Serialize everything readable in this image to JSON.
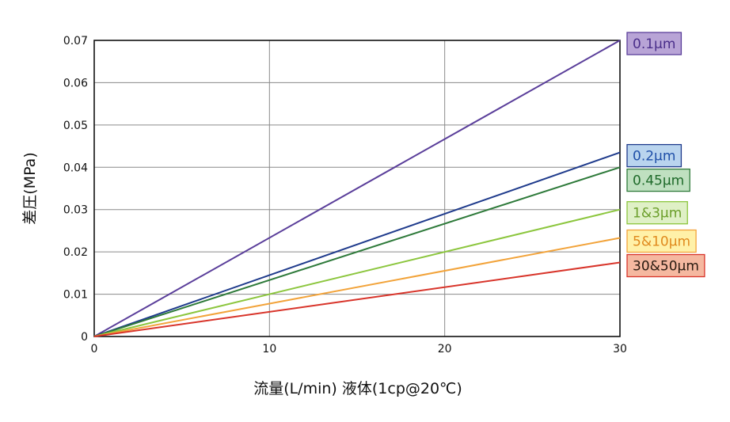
{
  "chart_data": {
    "type": "line",
    "title": "",
    "xlabel": "流量(L/min) 液体(1cp@20℃)",
    "ylabel": "差圧(MPa)",
    "xlim": [
      0,
      30
    ],
    "ylim": [
      0,
      0.07
    ],
    "x_ticks": [
      0,
      10,
      20,
      30
    ],
    "y_ticks": [
      0,
      0.01,
      0.02,
      0.03,
      0.04,
      0.05,
      0.06,
      0.07
    ],
    "x_tick_labels": [
      "0",
      "10",
      "20",
      "30"
    ],
    "y_tick_labels": [
      "0",
      "0.01",
      "0.02",
      "0.03",
      "0.04",
      "0.05",
      "0.06",
      "0.07"
    ],
    "grid": true,
    "legend_placement": "right",
    "x": [
      0,
      30
    ],
    "series": [
      {
        "name": "0.1μm",
        "values": [
          0,
          0.07
        ],
        "color": "#5a3e9a",
        "fill": "#b8a4d6",
        "text_color": "#4a2e8a"
      },
      {
        "name": "0.2μm",
        "values": [
          0,
          0.0435
        ],
        "color": "#1f3b8c",
        "fill": "#b9d4ee",
        "text_color": "#1f4fa8"
      },
      {
        "name": "0.45μm",
        "values": [
          0,
          0.04
        ],
        "color": "#2e7a3a",
        "fill": "#bfe0c0",
        "text_color": "#1e6a2a"
      },
      {
        "name": "1&3μm",
        "values": [
          0,
          0.03
        ],
        "color": "#8cc63e",
        "fill": "#dff0c6",
        "text_color": "#6a9e2a"
      },
      {
        "name": "5&10μm",
        "values": [
          0,
          0.0233
        ],
        "color": "#f2a33a",
        "fill": "#fff1a8",
        "text_color": "#e08a1e"
      },
      {
        "name": "30&50μm",
        "values": [
          0,
          0.0175
        ],
        "color": "#d8342a",
        "fill": "#f5b8a0",
        "text_color": "#2a1a10"
      }
    ]
  }
}
